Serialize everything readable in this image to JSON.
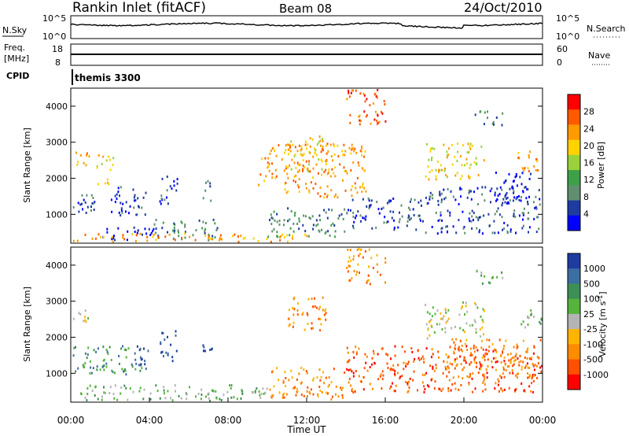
{
  "header": {
    "station": "Rankin Inlet (fitACF)",
    "beam": "Beam 08",
    "date": "24/Oct/2010"
  },
  "summary_panels": {
    "nsky_label": "N.Sky",
    "nsky_ticks": [
      "10^5",
      "10^0"
    ],
    "nsearch_label": "N.Search",
    "nsearch_ticks": [
      "10^5",
      "10^0"
    ],
    "freq_label_1": "Freq.",
    "freq_label_2": "[MHz]",
    "freq_ticks": [
      "18",
      "8"
    ],
    "nave_label": "Nave",
    "nave_ticks": [
      "60",
      "0"
    ],
    "cpid_label": "CPID",
    "cpid_value": "themis 3300"
  },
  "chart_data": [
    {
      "type": "heatmap",
      "name": "power-panel",
      "ylabel": "Slant Range [km]",
      "yticks": [
        "1000",
        "2000",
        "3000",
        "4000"
      ],
      "ylim": [
        200,
        4500
      ],
      "xlim": [
        0,
        24
      ],
      "colorbar": {
        "label": "Power [dB]",
        "ticks": [
          "28",
          "24",
          "20",
          "16",
          "12",
          "8",
          "4"
        ],
        "colors": [
          "#ff0000",
          "#ff5a00",
          "#ff9a00",
          "#ffd200",
          "#9bd23c",
          "#3ea048",
          "#5f8f6e",
          "#1e3ca0",
          "#0000ff"
        ]
      },
      "scatter_regions": [
        {
          "t0": 0.1,
          "t1": 0.9,
          "r0": 2300,
          "r1": 2800,
          "level": 2
        },
        {
          "t0": 0.1,
          "t1": 1.2,
          "r0": 1000,
          "r1": 1800,
          "level": 7
        },
        {
          "t0": 1.2,
          "t1": 2.0,
          "r0": 1700,
          "r1": 2000,
          "level": 3
        },
        {
          "t0": 1.3,
          "t1": 2.3,
          "r0": 2200,
          "r1": 2700,
          "level": 3
        },
        {
          "t0": 1.8,
          "t1": 3.8,
          "r0": 1000,
          "r1": 1800,
          "level": 7
        },
        {
          "t0": 1.5,
          "t1": 4.2,
          "r0": 300,
          "r1": 700,
          "level": 8
        },
        {
          "t0": 4.5,
          "t1": 5.4,
          "r0": 1300,
          "r1": 2200,
          "level": 7
        },
        {
          "t0": 6.7,
          "t1": 7.2,
          "r0": 1400,
          "r1": 2000,
          "level": 7
        },
        {
          "t0": 4.2,
          "t1": 7.5,
          "r0": 300,
          "r1": 900,
          "level": 6
        },
        {
          "t0": 0.0,
          "t1": 12.0,
          "r0": 200,
          "r1": 500,
          "level": 2
        },
        {
          "t0": 10.0,
          "t1": 14.0,
          "r0": 400,
          "r1": 1200,
          "level": 6
        },
        {
          "t0": 14.0,
          "t1": 18.0,
          "r0": 600,
          "r1": 1500,
          "level": 7
        },
        {
          "t0": 18.0,
          "t1": 24.0,
          "r0": 500,
          "r1": 1800,
          "level": 7
        },
        {
          "t0": 21.5,
          "t1": 23.5,
          "r0": 1300,
          "r1": 2200,
          "level": 8
        },
        {
          "t0": 11.0,
          "t1": 13.0,
          "r0": 2200,
          "r1": 3200,
          "level": 3
        },
        {
          "t0": 18.0,
          "t1": 21.0,
          "r0": 2000,
          "r1": 3000,
          "level": 3
        },
        {
          "t0": 20.5,
          "t1": 22.0,
          "r0": 3500,
          "r1": 3900,
          "level": 6
        },
        {
          "t0": 14.0,
          "t1": 16.0,
          "r0": 3500,
          "r1": 4500,
          "level": 1
        },
        {
          "t0": 9.5,
          "t1": 15.0,
          "r0": 1500,
          "r1": 3000,
          "level": 2
        },
        {
          "t0": 22.5,
          "t1": 24.0,
          "r0": 2200,
          "r1": 2800,
          "level": 2
        }
      ]
    },
    {
      "type": "heatmap",
      "name": "velocity-panel",
      "ylabel": "Slant Range [km]",
      "yticks": [
        "1000",
        "2000",
        "3000",
        "4000"
      ],
      "ylim": [
        200,
        4500
      ],
      "xlim": [
        0,
        24
      ],
      "xticks": [
        "00:00",
        "04:00",
        "08:00",
        "12:00",
        "16:00",
        "20:00",
        "00:00"
      ],
      "xlabel": "Time UT",
      "colorbar": {
        "label": "Velocity [m s^-1]",
        "ticks": [
          "1000",
          "500",
          "100",
          "25",
          "-25",
          "-100",
          "-500",
          "-1000"
        ],
        "colors": [
          "#1e3ca0",
          "#3c6ea0",
          "#3e8f55",
          "#56b33c",
          "#b4b4b4",
          "#ffb400",
          "#ff8c00",
          "#ff5000",
          "#ff0000"
        ]
      },
      "scatter_regions": [
        {
          "t0": 0.1,
          "t1": 0.9,
          "r0": 2300,
          "r1": 2800,
          "level": 4
        },
        {
          "t0": 0.1,
          "t1": 1.2,
          "r0": 1000,
          "r1": 1800,
          "level": 2
        },
        {
          "t0": 1.2,
          "t1": 3.8,
          "r0": 1000,
          "r1": 1800,
          "level": 2
        },
        {
          "t0": 3.2,
          "t1": 4.0,
          "r0": 1100,
          "r1": 1800,
          "level": 0
        },
        {
          "t0": 4.5,
          "t1": 5.4,
          "r0": 1300,
          "r1": 2200,
          "level": 0
        },
        {
          "t0": 6.7,
          "t1": 7.2,
          "r0": 1400,
          "r1": 2000,
          "level": 0
        },
        {
          "t0": 0.0,
          "t1": 10.0,
          "r0": 200,
          "r1": 700,
          "level": 3
        },
        {
          "t0": 10.0,
          "t1": 14.0,
          "r0": 300,
          "r1": 1200,
          "level": 6
        },
        {
          "t0": 14.0,
          "t1": 24.0,
          "r0": 500,
          "r1": 1800,
          "level": 7
        },
        {
          "t0": 19.0,
          "t1": 24.0,
          "r0": 900,
          "r1": 2000,
          "level": 6
        },
        {
          "t0": 11.0,
          "t1": 13.0,
          "r0": 2200,
          "r1": 3200,
          "level": 6
        },
        {
          "t0": 18.0,
          "t1": 21.0,
          "r0": 2000,
          "r1": 3000,
          "level": 4
        },
        {
          "t0": 20.5,
          "t1": 22.0,
          "r0": 3500,
          "r1": 3900,
          "level": 3
        },
        {
          "t0": 14.0,
          "t1": 16.0,
          "r0": 3500,
          "r1": 4500,
          "level": 6
        },
        {
          "t0": 22.5,
          "t1": 24.0,
          "r0": 2300,
          "r1": 2800,
          "level": 3
        }
      ]
    }
  ]
}
